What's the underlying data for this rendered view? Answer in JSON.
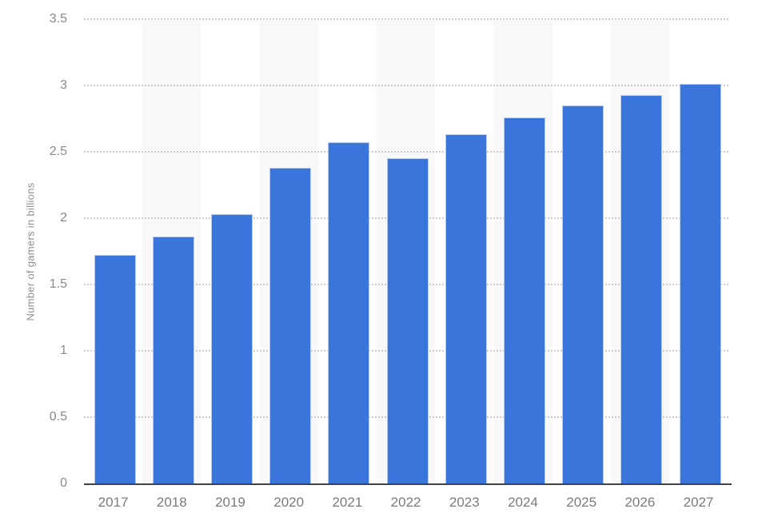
{
  "chart_data": {
    "type": "bar",
    "title": "",
    "xlabel": "",
    "ylabel": "Number of gamers in billions",
    "categories": [
      "2017",
      "2018",
      "2019",
      "2020",
      "2021",
      "2022",
      "2023",
      "2024",
      "2025",
      "2026",
      "2027"
    ],
    "values": [
      1.72,
      1.86,
      2.03,
      2.38,
      2.57,
      2.45,
      2.63,
      2.76,
      2.85,
      2.93,
      3.01
    ],
    "ylim": [
      0,
      3.5
    ],
    "y_ticks": [
      {
        "value": 0,
        "label": "0"
      },
      {
        "value": 0.5,
        "label": "0.5"
      },
      {
        "value": 1,
        "label": "1"
      },
      {
        "value": 1.5,
        "label": "1.5"
      },
      {
        "value": 2,
        "label": "2"
      },
      {
        "value": 2.5,
        "label": "2.5"
      },
      {
        "value": 3,
        "label": "3"
      },
      {
        "value": 3.5,
        "label": "3.5"
      }
    ],
    "grid": "horizontal-dotted",
    "legend": "none",
    "plot_background": "alternating-vertical-bands",
    "colors": {
      "bar": "#3a75dc",
      "bar_border": "#b9cbf0",
      "alt_band": "#f8f8f8",
      "gridline": "#cccccc",
      "axis_line": "#424242",
      "tick_label": "#8a8a8a",
      "x_label": "#7a7a7a",
      "y_axis_title": "#8e8e8e",
      "background": "#ffffff"
    }
  }
}
